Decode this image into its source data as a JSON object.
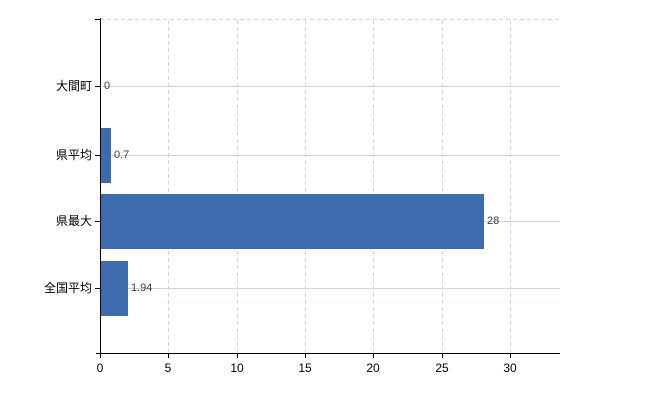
{
  "chart_data": {
    "type": "bar",
    "orientation": "horizontal",
    "title": "",
    "xlabel": "",
    "ylabel": "",
    "categories": [
      "大間町",
      "県平均",
      "県最大",
      "全国平均"
    ],
    "values": [
      0,
      0.7,
      28,
      1.94
    ],
    "value_labels": [
      "0",
      "0.7",
      "28",
      "1.94"
    ],
    "xlim": [
      0,
      33.65
    ],
    "xticks": [
      0,
      5,
      10,
      15,
      20,
      25,
      30
    ],
    "xtick_labels": [
      "0",
      "5",
      "10",
      "15",
      "20",
      "25",
      "30"
    ],
    "grid": {
      "vertical": "dashed",
      "horizontal": "solid",
      "top_border": "dashed"
    },
    "legend": "none",
    "bar_color": "#3c6cae"
  },
  "colors": {
    "background": "#ffffff",
    "bar": "#3c6cae",
    "axis": "#000000",
    "horizontal_gridline": "#ccd5cb",
    "vertical_gridline": "#d9d3d9",
    "value_label": "#3d3d3d",
    "tick_label": "#000000",
    "category_label": "#000000"
  }
}
